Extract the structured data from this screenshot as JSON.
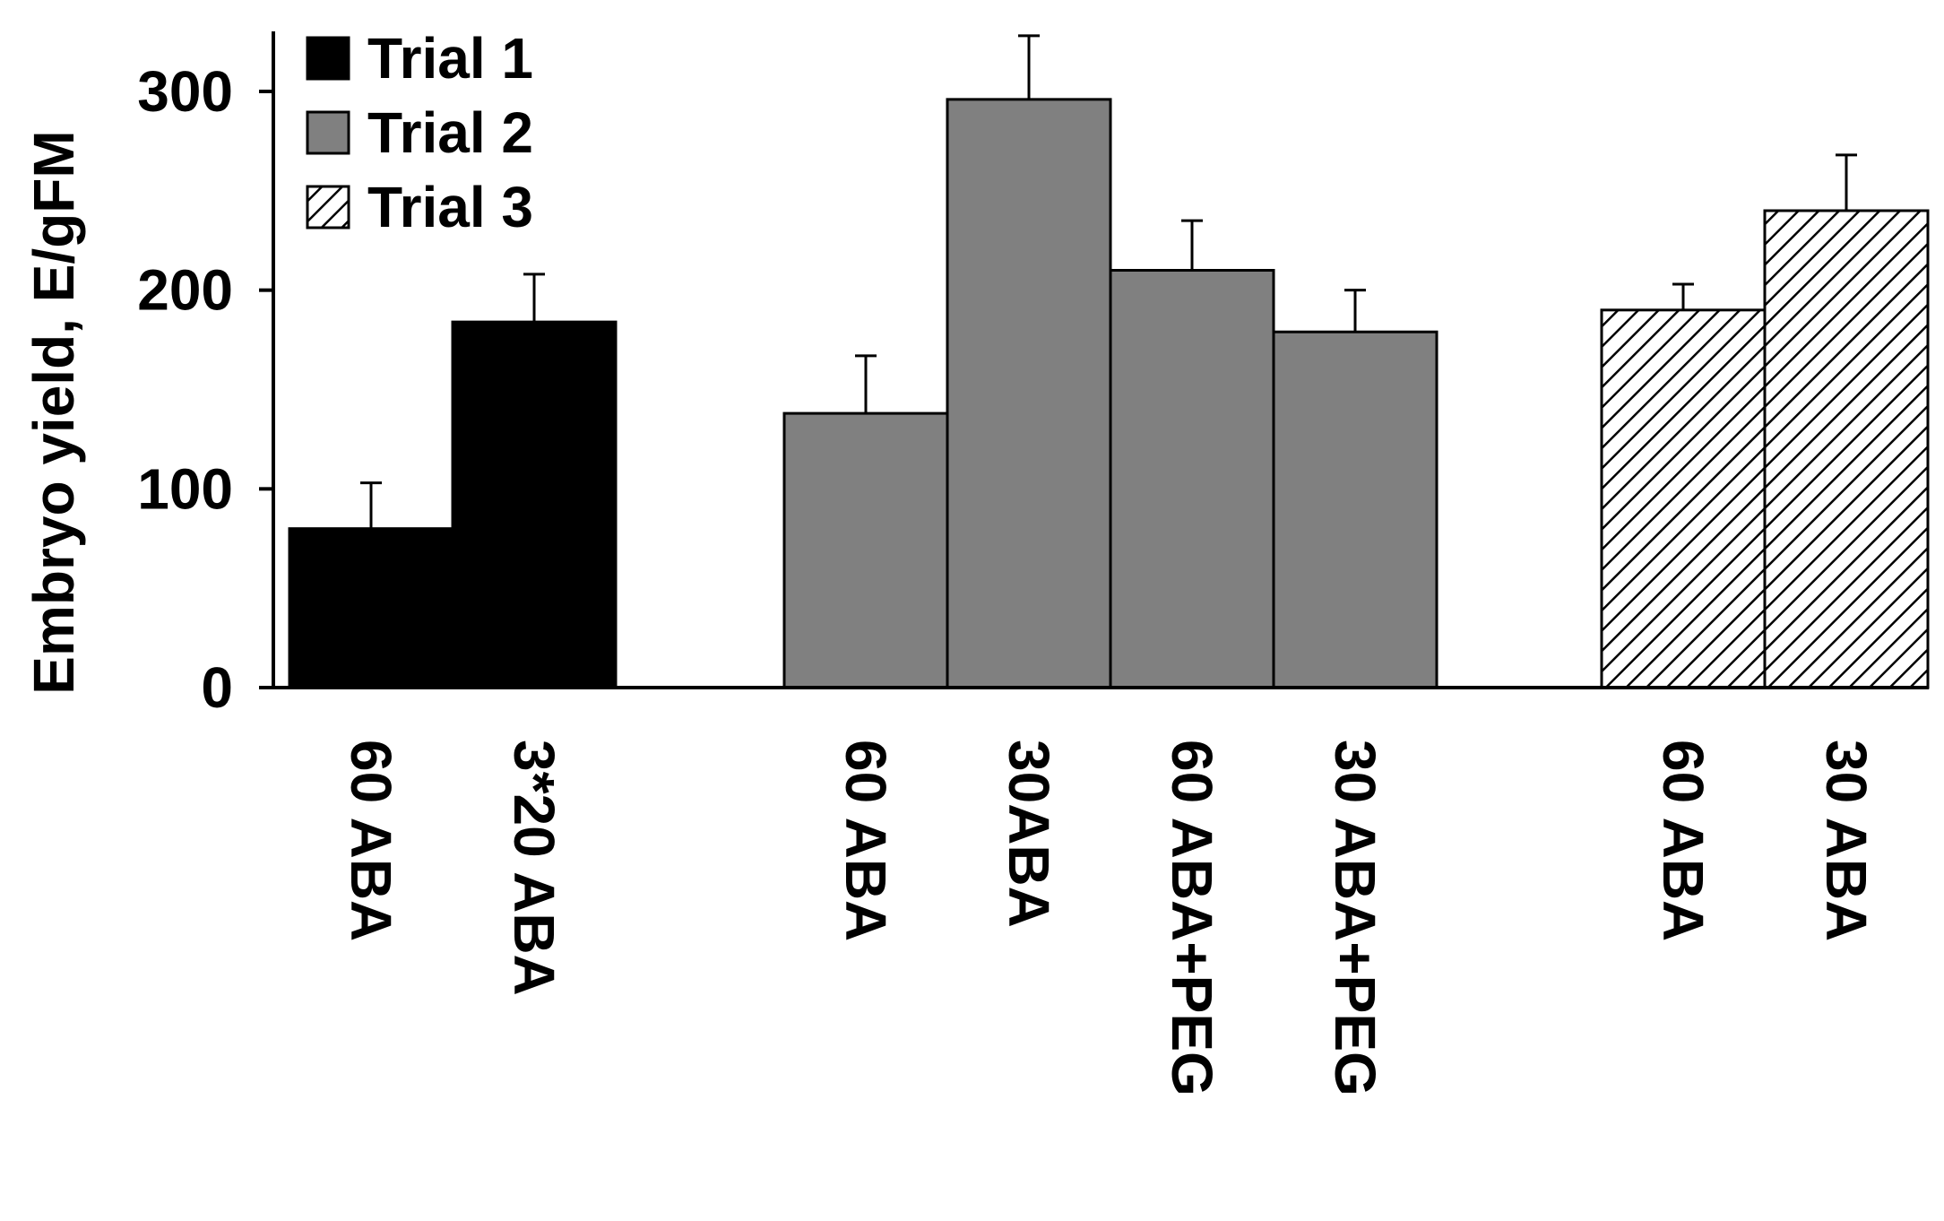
{
  "chart_data": {
    "type": "bar",
    "title": "",
    "xlabel": "",
    "ylabel": "Embryo yield, E/gFM",
    "ylim": [
      0,
      300
    ],
    "yticks": [
      "0",
      "100",
      "200",
      "300"
    ],
    "grid": false,
    "legend_position": "top-left",
    "series": [
      {
        "name": "Trial 1",
        "pattern": "solid",
        "color": "#000000",
        "categories": [
          "60 ABA",
          "3*20 ABA"
        ],
        "values": [
          80,
          184
        ],
        "errors": [
          23,
          24
        ]
      },
      {
        "name": "Trial 2",
        "pattern": "solid",
        "color": "#808080",
        "categories": [
          "60 ABA",
          "30ABA",
          "60 ABA+PEG",
          "30 ABA+PEG"
        ],
        "values": [
          138,
          296,
          210,
          179
        ],
        "errors": [
          29,
          32,
          25,
          21
        ]
      },
      {
        "name": "Trial 3",
        "pattern": "hatch",
        "color": "#000000",
        "categories": [
          "60 ABA",
          "30 ABA"
        ],
        "values": [
          190,
          240
        ],
        "errors": [
          13,
          28
        ]
      }
    ]
  }
}
